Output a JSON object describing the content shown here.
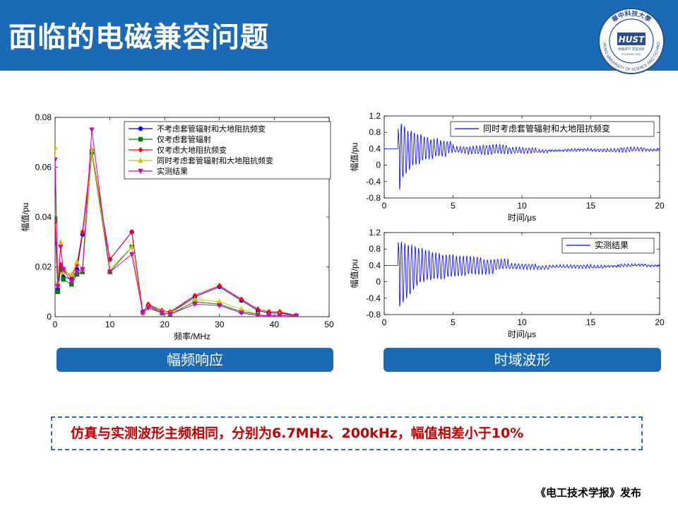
{
  "header": {
    "title": "面临的电磁兼容问题"
  },
  "logo": {
    "top_text": "華中科技大學",
    "side_text": "HUAZHONG UNIVERSITY OF SCIENCE AND TECHNOLOGY",
    "mark": "HUST",
    "motto": "明德厚学 求是创新",
    "year": "FOUNDED 1952"
  },
  "captions": {
    "left": "幅频响应",
    "right": "时域波形"
  },
  "summary": "仿真与实测波形主频相同，分别为6.7MHz、200kHz，幅值相差小于10%",
  "publisher": "《电工技术学报》发布",
  "colors": {
    "accent": "#1a6ab5",
    "highlight": "#c00000"
  },
  "chart_data": [
    {
      "type": "line",
      "xlabel": "频率/MHz",
      "ylabel": "幅值/pu",
      "xlim": [
        0,
        50
      ],
      "ylim": [
        0,
        0.08
      ],
      "xticks": [
        0,
        10,
        20,
        30,
        40,
        50
      ],
      "yticks": [
        0,
        0.02,
        0.04,
        0.06,
        0.08
      ],
      "ytick_labels": [
        "0",
        "0.02",
        "0.04",
        "0.06",
        "0.08"
      ],
      "legend": "top-right",
      "series": [
        {
          "name": "不考虑套管辐射和大地阻抗频变",
          "color": "#0000ff",
          "marker": "circle",
          "x": [
            0,
            0.5,
            1,
            1.5,
            3,
            4,
            5,
            6.7,
            10,
            14,
            16,
            17,
            19.5,
            21,
            25.5,
            30,
            34,
            37,
            39,
            41,
            44
          ],
          "y": [
            0.038,
            0.011,
            0.02,
            0.016,
            0.015,
            0.019,
            0.033,
            0.066,
            0.023,
            0.034,
            0.002,
            0.0045,
            0.002,
            0.0015,
            0.008,
            0.012,
            0.0065,
            0.0025,
            0.0015,
            0.0015,
            0.0005
          ]
        },
        {
          "name": "仅考虑套管辐射",
          "color": "#008000",
          "marker": "square",
          "x": [
            0,
            0.5,
            1,
            1.5,
            3,
            4,
            5,
            6.7,
            10,
            14,
            16,
            17,
            19.5,
            21,
            25.5,
            30,
            34,
            37,
            39,
            41,
            44
          ],
          "y": [
            0.039,
            0.01,
            0.019,
            0.015,
            0.013,
            0.017,
            0.018,
            0.066,
            0.018,
            0.028,
            0.0015,
            0.004,
            0.0015,
            0.001,
            0.006,
            0.005,
            0.002,
            0.001,
            0.0005,
            0.001,
            0.0003
          ]
        },
        {
          "name": "仅考虑大地阻抗频变",
          "color": "#ff0000",
          "marker": "diamond",
          "x": [
            0,
            0.5,
            1,
            1.5,
            3,
            4,
            5,
            6.7,
            10,
            14,
            16,
            17,
            19.5,
            21,
            25.5,
            30,
            34,
            37,
            39,
            41,
            44
          ],
          "y": [
            0.038,
            0.013,
            0.021,
            0.019,
            0.016,
            0.021,
            0.034,
            0.067,
            0.023,
            0.034,
            0.0015,
            0.005,
            0.0025,
            0.002,
            0.0085,
            0.0125,
            0.007,
            0.003,
            0.002,
            0.002,
            0.0005
          ]
        },
        {
          "name": "同时考虑套管辐射和大地阻抗频变",
          "color": "#c8c800",
          "marker": "triangle-up",
          "x": [
            0,
            0.5,
            1,
            1.5,
            3,
            4,
            5,
            6.7,
            10,
            14,
            16,
            17,
            19.5,
            21,
            25.5,
            30,
            34,
            37,
            39,
            41,
            44
          ],
          "y": [
            0.068,
            0.014,
            0.03,
            0.018,
            0.017,
            0.022,
            0.019,
            0.067,
            0.019,
            0.028,
            0.0015,
            0.004,
            0.002,
            0.0015,
            0.007,
            0.006,
            0.003,
            0.001,
            0.0005,
            0.001,
            0.0003
          ]
        },
        {
          "name": "实测结果",
          "color": "#cc00cc",
          "marker": "triangle-down",
          "x": [
            0,
            0.5,
            1,
            1.5,
            3,
            4,
            5,
            6.7,
            10,
            14,
            16,
            17,
            19.5,
            21,
            25.5,
            30,
            34,
            37,
            39,
            41,
            44
          ],
          "y": [
            0.063,
            0.012,
            0.028,
            0.019,
            0.014,
            0.018,
            0.019,
            0.075,
            0.018,
            0.025,
            0.0015,
            0.0035,
            0.0015,
            0.001,
            0.005,
            0.0045,
            0.0015,
            0.0005,
            0.0003,
            0.0005,
            0.0002
          ]
        }
      ]
    },
    {
      "type": "line",
      "xlabel": "时间/μs",
      "ylabel": "幅值/pu",
      "xlim": [
        0,
        20
      ],
      "ylim": [
        -0.8,
        1.2
      ],
      "xticks": [
        0,
        5,
        10,
        15,
        20
      ],
      "yticks": [
        -0.8,
        -0.4,
        0,
        0.4,
        0.8,
        1.2
      ],
      "ytick_labels": [
        "-0.8",
        "-0.4",
        "0",
        "0.4",
        "0.8",
        "1.2"
      ],
      "legend": "top-right",
      "series": [
        {
          "name": "同时考虑套管辐射和大地阻抗频变",
          "color": "#0000ff",
          "x": [
            0,
            1,
            1.1,
            1.2,
            1.3,
            1.4,
            1.5,
            1.6,
            1.7,
            1.8,
            1.9,
            2.0,
            2.2,
            2.4,
            2.6,
            2.8,
            3.0,
            3.3,
            3.6,
            4.0,
            4.5,
            5,
            6,
            7,
            8,
            9,
            10,
            11,
            12,
            13,
            14,
            15,
            16,
            17,
            18,
            19,
            20
          ],
          "y": [
            0.4,
            0.4,
            0.9,
            -0.6,
            1.0,
            -0.3,
            0.95,
            -0.2,
            0.85,
            -0.1,
            0.85,
            0.0,
            0.8,
            0.0,
            0.75,
            0.1,
            0.7,
            0.15,
            0.65,
            0.2,
            0.6,
            0.3,
            0.45,
            0.28,
            0.48,
            0.3,
            0.42,
            0.3,
            0.38,
            0.33,
            0.4,
            0.35,
            0.38,
            0.34,
            0.42,
            0.36,
            0.38
          ]
        },
        {
          "name": "实测结果",
          "color": "#0000ff",
          "x": [
            0,
            1,
            1.1,
            1.2,
            1.3,
            1.4,
            1.5,
            1.6,
            1.7,
            1.8,
            1.9,
            2.0,
            2.2,
            2.4,
            2.6,
            2.8,
            3.0,
            3.3,
            3.6,
            4.0,
            4.5,
            5,
            6,
            7,
            8,
            9,
            10,
            11,
            12,
            13,
            14,
            15,
            16,
            17,
            18,
            19,
            20
          ],
          "y": [
            0.4,
            0.4,
            1.0,
            -0.6,
            1.0,
            -0.5,
            0.95,
            -0.4,
            0.9,
            -0.3,
            0.9,
            -0.2,
            0.85,
            -0.1,
            0.8,
            0.0,
            0.75,
            0.05,
            0.7,
            0.1,
            0.65,
            0.15,
            0.6,
            0.2,
            0.55,
            0.3,
            0.45,
            0.3,
            0.4,
            0.35,
            0.4,
            0.35,
            0.38,
            0.38,
            0.42,
            0.4,
            0.38
          ]
        }
      ]
    }
  ]
}
